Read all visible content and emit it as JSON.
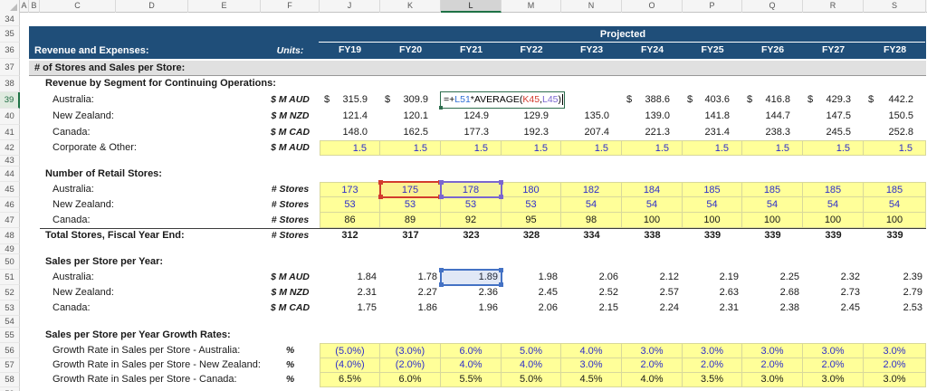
{
  "sheet": {
    "currency_symbol": "$",
    "active_col": "L",
    "active_row": "39",
    "col_headers": [
      "A",
      "B",
      "C",
      "D",
      "E",
      "F",
      "J",
      "K",
      "L",
      "M",
      "N",
      "O",
      "P",
      "Q",
      "R",
      "S"
    ],
    "row_numbers": [
      "34",
      "35",
      "36",
      "37",
      "38",
      "39",
      "40",
      "41",
      "42",
      "43",
      "44",
      "45",
      "46",
      "47",
      "48",
      "49",
      "50",
      "51",
      "52",
      "53",
      "54",
      "55",
      "56",
      "57",
      "58",
      "59"
    ],
    "header_band": {
      "title": "Projected",
      "left_label": "Revenue and Expenses:",
      "units_label": "Units:",
      "fiscal_years": [
        "FY19",
        "FY20",
        "FY21",
        "FY22",
        "FY23",
        "FY24",
        "FY25",
        "FY26",
        "FY27",
        "FY28"
      ],
      "bg": "#1f4e79"
    },
    "section_band": {
      "label": "# of Stores and Sales per Store:",
      "bg": "#e0e0e0"
    },
    "formula": {
      "cell_ref": "L39",
      "parts": [
        {
          "text": "=+",
          "color": "#000000"
        },
        {
          "text": "L51",
          "color": "#2f6fd6"
        },
        {
          "text": "*AVERAGE(",
          "color": "#000000"
        },
        {
          "text": "K45",
          "color": "#d23b2e"
        },
        {
          "text": ",",
          "color": "#000000"
        },
        {
          "text": "L45",
          "color": "#7a66cf"
        },
        {
          "text": ")",
          "color": "#000000"
        }
      ]
    },
    "selection": {
      "red_ref_cell": "K45",
      "purple_ref_cell": "L45",
      "blue_ref_cell": "L51"
    },
    "colors": {
      "band_navy": "#1f4e79",
      "input_yellow": "#ffff99",
      "input_text_blue": "#2e2ec9",
      "ref_red": "#d23b2e",
      "ref_purple": "#7a66cf",
      "ref_blue": "#4472c4",
      "active_green": "#1e7145"
    },
    "rows": [
      {
        "n": "38",
        "label": "Revenue by Segment for Continuing Operations:",
        "style": "section"
      },
      {
        "n": "39",
        "label": "Australia:",
        "unit": "$ M AUD",
        "style": "item",
        "align": "ar",
        "color": "black",
        "dollar": [
          1,
          1,
          0,
          0,
          0,
          1,
          1,
          1,
          1,
          1
        ],
        "values": [
          "315.9",
          "309.9",
          "",
          "",
          "",
          "388.6",
          "403.6",
          "416.8",
          "429.3",
          "442.2"
        ]
      },
      {
        "n": "40",
        "label": "New Zealand:",
        "unit": "$ M NZD",
        "style": "item",
        "align": "ar",
        "color": "black",
        "values": [
          "121.4",
          "120.1",
          "124.9",
          "129.9",
          "135.0",
          "139.0",
          "141.8",
          "144.7",
          "147.5",
          "150.5"
        ]
      },
      {
        "n": "41",
        "label": "Canada:",
        "unit": "$ M CAD",
        "style": "item",
        "align": "ar",
        "color": "black",
        "values": [
          "148.0",
          "162.5",
          "177.3",
          "192.3",
          "207.4",
          "221.3",
          "231.4",
          "238.3",
          "245.5",
          "252.8"
        ]
      },
      {
        "n": "42",
        "label": "Corporate & Other:",
        "unit": "$ M AUD",
        "style": "item",
        "align": "ar",
        "color": "blue",
        "fill": "yellow",
        "fill_first": true,
        "values": [
          "1.5",
          "1.5",
          "1.5",
          "1.5",
          "1.5",
          "1.5",
          "1.5",
          "1.5",
          "1.5",
          "1.5"
        ]
      },
      {
        "n": "44",
        "label": "Number of Retail Stores:",
        "style": "section"
      },
      {
        "n": "45",
        "label": "Australia:",
        "unit": "# Stores",
        "style": "item",
        "align": "ac",
        "color": "blue",
        "fill": "yellow",
        "fill_first": true,
        "values": [
          "173",
          "175",
          "178",
          "180",
          "182",
          "184",
          "185",
          "185",
          "185",
          "185"
        ]
      },
      {
        "n": "46",
        "label": "New Zealand:",
        "unit": "# Stores",
        "style": "item",
        "align": "ac",
        "color": "blue",
        "fill": "yellow",
        "values": [
          "53",
          "53",
          "53",
          "53",
          "54",
          "54",
          "54",
          "54",
          "54",
          "54"
        ]
      },
      {
        "n": "47",
        "label": "Canada:",
        "unit": "# Stores",
        "style": "item",
        "align": "ac",
        "color": "black",
        "fill": "yellow",
        "values": [
          "86",
          "89",
          "92",
          "95",
          "98",
          "100",
          "100",
          "100",
          "100",
          "100"
        ]
      },
      {
        "n": "48",
        "label": "Total Stores, Fiscal Year End:",
        "unit": "# Stores",
        "style": "total",
        "align": "ac",
        "color": "black",
        "bold": true,
        "values": [
          "312",
          "317",
          "323",
          "328",
          "334",
          "338",
          "339",
          "339",
          "339",
          "339"
        ]
      },
      {
        "n": "50",
        "label": "Sales per Store per Year:",
        "style": "section"
      },
      {
        "n": "51",
        "label": "Australia:",
        "unit": "$ M AUD",
        "style": "item",
        "align": "arr",
        "color": "black",
        "values": [
          "1.84",
          "1.78",
          "1.89",
          "1.98",
          "2.06",
          "2.12",
          "2.19",
          "2.25",
          "2.32",
          "2.39"
        ]
      },
      {
        "n": "52",
        "label": "New Zealand:",
        "unit": "$ M NZD",
        "style": "item",
        "align": "arr",
        "color": "black",
        "values": [
          "2.31",
          "2.27",
          "2.36",
          "2.45",
          "2.52",
          "2.57",
          "2.63",
          "2.68",
          "2.73",
          "2.79"
        ]
      },
      {
        "n": "53",
        "label": "Canada:",
        "unit": "$ M CAD",
        "style": "item",
        "align": "arr",
        "color": "black",
        "values": [
          "1.75",
          "1.86",
          "1.96",
          "2.06",
          "2.15",
          "2.24",
          "2.31",
          "2.38",
          "2.45",
          "2.53"
        ]
      },
      {
        "n": "55",
        "label": "Sales per Store per Year Growth Rates:",
        "style": "section"
      },
      {
        "n": "56",
        "label": "Growth Rate in Sales per Store - Australia:",
        "unit": "%",
        "style": "item",
        "align": "ac",
        "color": "blue",
        "fill": "yellow",
        "fill_first": true,
        "values": [
          "(5.0%)",
          "(3.0%)",
          "6.0%",
          "5.0%",
          "4.0%",
          "3.0%",
          "3.0%",
          "3.0%",
          "3.0%",
          "3.0%"
        ]
      },
      {
        "n": "57",
        "label": "Growth Rate in Sales per Store - New Zealand:",
        "unit": "%",
        "style": "item",
        "align": "ac",
        "color": "blue",
        "fill": "yellow",
        "values": [
          "(4.0%)",
          "(2.0%)",
          "4.0%",
          "4.0%",
          "3.0%",
          "2.0%",
          "2.0%",
          "2.0%",
          "2.0%",
          "2.0%"
        ]
      },
      {
        "n": "58",
        "label": "Growth Rate in Sales per Store - Canada:",
        "unit": "%",
        "style": "item",
        "align": "ac",
        "color": "black",
        "fill": "yellow",
        "values": [
          "6.5%",
          "6.0%",
          "5.5%",
          "5.0%",
          "4.5%",
          "4.0%",
          "3.5%",
          "3.0%",
          "3.0%",
          "3.0%"
        ]
      }
    ]
  }
}
